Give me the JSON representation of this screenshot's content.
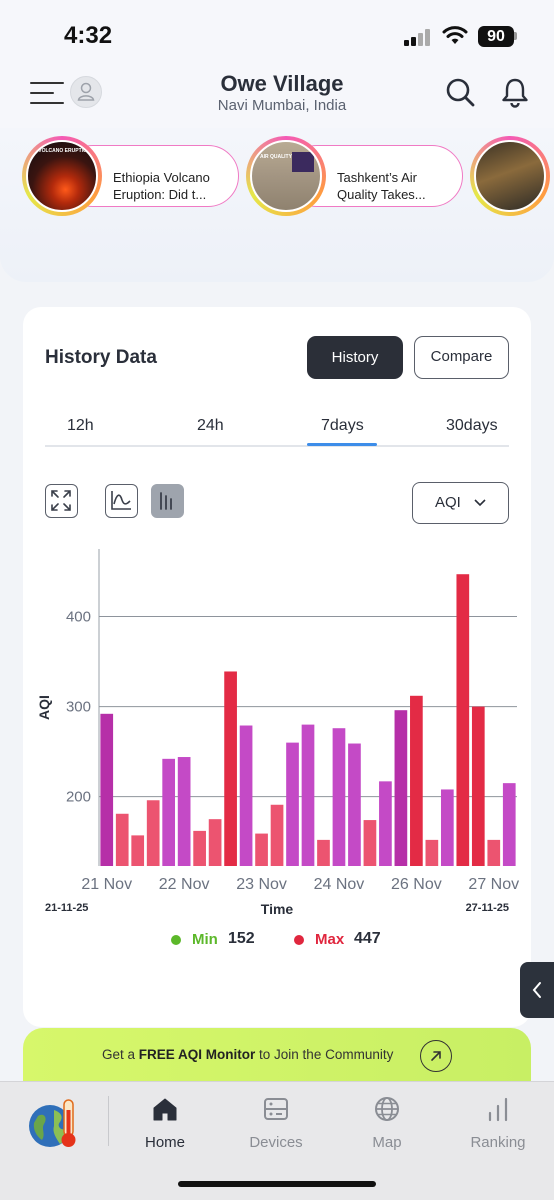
{
  "status_bar": {
    "time": "4:32",
    "battery": "90"
  },
  "header": {
    "title": "Owe Village",
    "subtitle": "Navi Mumbai, India"
  },
  "stories": [
    {
      "title": "Ethiopia Volcano Eruption: Did t...",
      "thumb_text": "A VOLCANO ERUPTION"
    },
    {
      "title": "Tashkent’s Air Quality Takes...",
      "thumb_text": "AIR QUALITY"
    },
    {
      "title": "",
      "thumb_text": ""
    }
  ],
  "history": {
    "title": "History Data",
    "history_button": "History",
    "compare_button": "Compare",
    "range_tabs": [
      "12h",
      "24h",
      "7days",
      "30days"
    ],
    "selected_range": "7days",
    "metric": "AQI"
  },
  "chart_data": {
    "type": "bar",
    "ylabel": "AQI",
    "xlabel": "Time",
    "y_ticks": [
      200,
      300,
      400
    ],
    "ylim": [
      123,
      475
    ],
    "x_tick_labels": [
      "21 Nov",
      "22 Nov",
      "23 Nov",
      "24 Nov",
      "26 Nov",
      "27 Nov"
    ],
    "x_tick_positions": [
      0,
      5,
      10,
      15,
      20,
      25
    ],
    "start_date": "21-11-25",
    "end_date": "27-11-25",
    "values": [
      292,
      181,
      157,
      196,
      242,
      244,
      162,
      175,
      339,
      279,
      159,
      191,
      260,
      280,
      152,
      276,
      259,
      174,
      217,
      296,
      312,
      152,
      208,
      447,
      300,
      152,
      215
    ],
    "grid": true
  },
  "legend": {
    "min_label": "Min",
    "min_value": "152",
    "max_label": "Max",
    "max_value": "447",
    "min_color": "#5cb82a",
    "max_color": "#e0263e"
  },
  "promo": {
    "prefix": "Get a ",
    "bold": "FREE AQI Monitor",
    "suffix": " to Join the Community"
  },
  "tabbar": {
    "items": [
      {
        "label": "Home",
        "icon": "home-icon"
      },
      {
        "label": "Devices",
        "icon": "device-icon"
      },
      {
        "label": "Map",
        "icon": "globe-icon"
      },
      {
        "label": "Ranking",
        "icon": "ranking-icon"
      }
    ]
  }
}
